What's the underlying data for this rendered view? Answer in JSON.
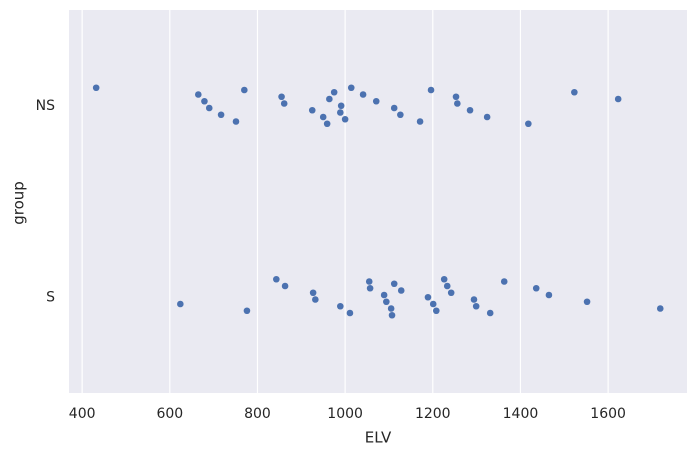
{
  "chart_data": {
    "type": "strip",
    "x_label": "ELV",
    "y_label": "group",
    "categories": [
      "NS",
      "S"
    ],
    "values": [
      [
        432,
        665,
        679,
        690,
        717,
        751,
        770,
        855,
        861,
        925,
        950,
        959,
        975,
        964,
        991,
        989,
        1000,
        1014,
        1041,
        1071,
        1112,
        1126,
        1171,
        1196,
        1253,
        1256,
        1285,
        1324,
        1418,
        1523,
        1623
      ],
      [
        624,
        776,
        843,
        863,
        927,
        932,
        989,
        1011,
        1055,
        1057,
        1089,
        1094,
        1105,
        1107,
        1112,
        1128,
        1189,
        1201,
        1208,
        1226,
        1233,
        1242,
        1294,
        1299,
        1331,
        1363,
        1436,
        1465,
        1552,
        1719
      ]
    ],
    "color": "#4c72b0",
    "xlim": [
      370,
      1780
    ],
    "xticks": [
      400,
      600,
      800,
      1000,
      1200,
      1400,
      1600
    ],
    "grid": true
  }
}
